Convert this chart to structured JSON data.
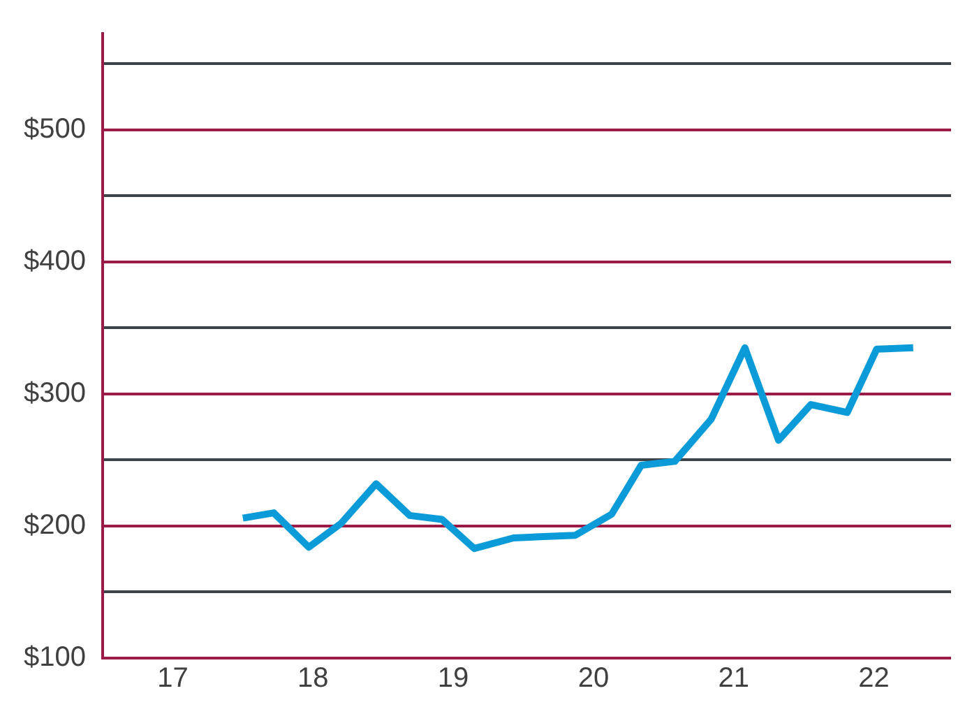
{
  "chart_data": {
    "type": "line",
    "x": [
      17.5,
      17.72,
      17.97,
      18.2,
      18.45,
      18.69,
      18.92,
      19.15,
      19.43,
      19.65,
      19.87,
      20.13,
      20.34,
      20.58,
      20.84,
      21.08,
      21.32,
      21.55,
      21.81,
      22.02,
      22.28
    ],
    "series": [
      {
        "color": "#0b9bd8",
        "values": [
          206,
          210,
          184,
          202,
          232,
          208,
          205,
          183,
          191,
          192,
          193,
          209,
          246,
          249,
          281,
          335,
          265,
          292,
          286,
          334,
          335
        ]
      }
    ],
    "xlim": [
      16.5,
      22.55
    ],
    "xticks": [
      17,
      18,
      19,
      20,
      21,
      22
    ],
    "ylim": [
      100,
      573
    ],
    "yticks": [
      {
        "value": 100,
        "label": "$100"
      },
      {
        "value": 150,
        "label": null
      },
      {
        "value": 200,
        "label": "$200"
      },
      {
        "value": 250,
        "label": null
      },
      {
        "value": 300,
        "label": "$300"
      },
      {
        "value": 350,
        "label": null
      },
      {
        "value": 400,
        "label": "$400"
      },
      {
        "value": 450,
        "label": null
      },
      {
        "value": 500,
        "label": "$500"
      },
      {
        "value": 550,
        "label": null
      }
    ],
    "grid": "y",
    "legend": false,
    "marker": "none",
    "line_style": "solid"
  }
}
